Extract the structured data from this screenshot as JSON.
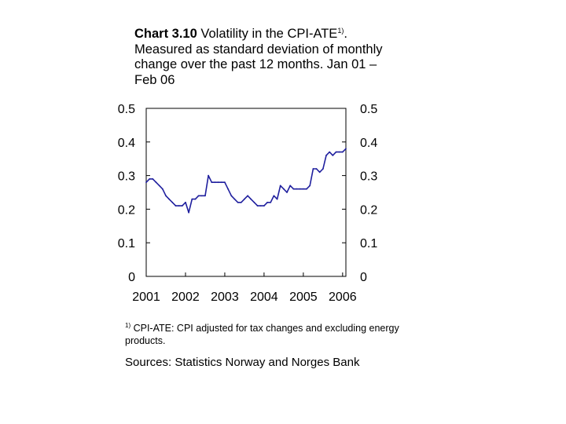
{
  "chart_data": {
    "type": "line",
    "title": {
      "number": "Chart 3.10",
      "text_before_sup": " Volatility in the CPI-ATE",
      "sup": "1)",
      "text_after_sup": ". Measured as standard deviation of monthly change over the past 12 months. Jan 01 – Feb 06"
    },
    "xlabel": "",
    "ylabel": "",
    "xlim": [
      "2001-01",
      "2006-02"
    ],
    "ylim": [
      0,
      0.5
    ],
    "grid": false,
    "y_ticks_left": [
      "0.5",
      "0.4",
      "0.3",
      "0.2",
      "0.1",
      "0"
    ],
    "y_ticks_right": [
      "0.5",
      "0.4",
      "0.3",
      "0.2",
      "0.1",
      "0"
    ],
    "x_ticks": [
      "2001",
      "2002",
      "2003",
      "2004",
      "2005",
      "2006"
    ],
    "series": [
      {
        "color": "#1f1f9e",
        "x": [
          "2001-01",
          "2001-02",
          "2001-03",
          "2001-04",
          "2001-05",
          "2001-06",
          "2001-07",
          "2001-08",
          "2001-09",
          "2001-10",
          "2001-11",
          "2001-12",
          "2002-01",
          "2002-02",
          "2002-03",
          "2002-04",
          "2002-05",
          "2002-06",
          "2002-07",
          "2002-08",
          "2002-09",
          "2002-10",
          "2002-11",
          "2002-12",
          "2003-01",
          "2003-02",
          "2003-03",
          "2003-04",
          "2003-05",
          "2003-06",
          "2003-07",
          "2003-08",
          "2003-09",
          "2003-10",
          "2003-11",
          "2003-12",
          "2004-01",
          "2004-02",
          "2004-03",
          "2004-04",
          "2004-05",
          "2004-06",
          "2004-07",
          "2004-08",
          "2004-09",
          "2004-10",
          "2004-11",
          "2004-12",
          "2005-01",
          "2005-02",
          "2005-03",
          "2005-04",
          "2005-05",
          "2005-06",
          "2005-07",
          "2005-08",
          "2005-09",
          "2005-10",
          "2005-11",
          "2005-12",
          "2006-01",
          "2006-02"
        ],
        "values": [
          0.28,
          0.29,
          0.29,
          0.28,
          0.27,
          0.26,
          0.24,
          0.23,
          0.22,
          0.21,
          0.21,
          0.21,
          0.22,
          0.19,
          0.23,
          0.23,
          0.24,
          0.24,
          0.24,
          0.3,
          0.28,
          0.28,
          0.28,
          0.28,
          0.28,
          0.26,
          0.24,
          0.23,
          0.22,
          0.22,
          0.23,
          0.24,
          0.23,
          0.22,
          0.21,
          0.21,
          0.21,
          0.22,
          0.22,
          0.24,
          0.23,
          0.27,
          0.26,
          0.25,
          0.27,
          0.26,
          0.26,
          0.26,
          0.26,
          0.26,
          0.27,
          0.32,
          0.32,
          0.31,
          0.32,
          0.36,
          0.37,
          0.36,
          0.37,
          0.37,
          0.37,
          0.38
        ]
      }
    ]
  },
  "footnote": {
    "marker": "1)",
    "text": " CPI-ATE: CPI adjusted for tax changes and excluding energy products."
  },
  "sources": "Sources: Statistics Norway and Norges Bank"
}
